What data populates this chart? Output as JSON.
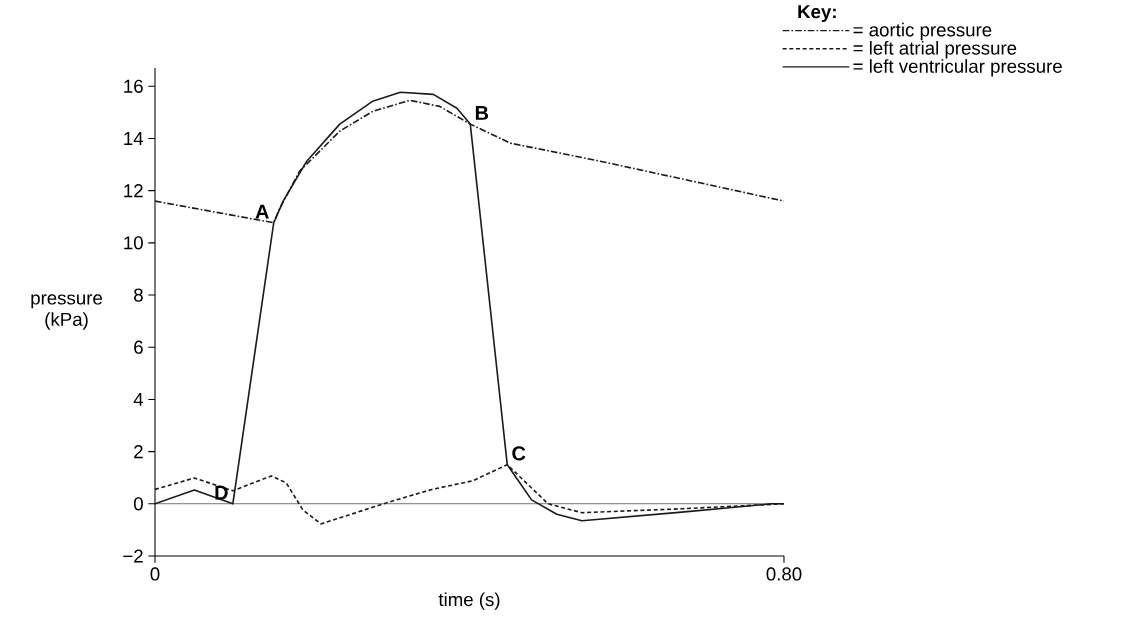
{
  "chart_data": {
    "type": "line",
    "xlabel": "time (s)",
    "ylabel": "pressure (kPa)",
    "legend_title": "Key:",
    "legend": "top right",
    "xlim": [
      0,
      0.8
    ],
    "ylim": [
      -2,
      16.7
    ],
    "xticks": [
      0,
      {
        "value": 0.8,
        "label": "0.80"
      }
    ],
    "yticks": [
      {
        "value": -2,
        "label": "−2"
      },
      0,
      2,
      4,
      6,
      8,
      10,
      12,
      14,
      16
    ],
    "ref_lines": [
      {
        "axis": "y",
        "value": 0
      }
    ],
    "series": [
      {
        "name": "= aortic pressure",
        "color": "#1a1a1a",
        "line_style": "dashdot",
        "x": [
          0,
          0.151,
          0.159,
          0.184,
          0.235,
          0.277,
          0.324,
          0.362,
          0.401,
          0.452,
          0.566,
          0.693,
          0.8
        ],
        "values": [
          11.6,
          10.77,
          11.34,
          12.75,
          14.28,
          15.04,
          15.46,
          15.23,
          14.55,
          13.82,
          13.13,
          12.3,
          11.6
        ]
      },
      {
        "name": "= left atrial pressure",
        "color": "#1a1a1a",
        "line_style": "dashed",
        "x": [
          0,
          0.05,
          0.099,
          0.148,
          0.167,
          0.188,
          0.211,
          0.299,
          0.352,
          0.404,
          0.448,
          0.5,
          0.543,
          0.67,
          0.8
        ],
        "values": [
          0.55,
          0.99,
          0.5,
          1.07,
          0.8,
          -0.23,
          -0.77,
          0.08,
          0.55,
          0.88,
          1.5,
          0,
          -0.34,
          -0.19,
          0
        ]
      },
      {
        "name": "= left ventricular pressure",
        "color": "#1a1a1a",
        "line_style": "solid",
        "x": [
          0,
          0.05,
          0.099,
          0.151,
          0.163,
          0.193,
          0.235,
          0.277,
          0.312,
          0.354,
          0.384,
          0.401,
          0.448,
          0.479,
          0.511,
          0.543,
          0.67,
          0.784,
          0.8
        ],
        "values": [
          0,
          0.53,
          0,
          10.77,
          11.6,
          13.13,
          14.55,
          15.43,
          15.77,
          15.69,
          15.16,
          14.55,
          1.5,
          0.15,
          -0.4,
          -0.65,
          -0.32,
          0,
          0
        ]
      }
    ],
    "annotations": [
      {
        "text": "A",
        "x": 0.151,
        "y": 10.77
      },
      {
        "text": "B",
        "x": 0.401,
        "y": 14.55
      },
      {
        "text": "C",
        "x": 0.448,
        "y": 1.5
      },
      {
        "text": "D",
        "x": 0.099,
        "y": 0
      }
    ]
  }
}
